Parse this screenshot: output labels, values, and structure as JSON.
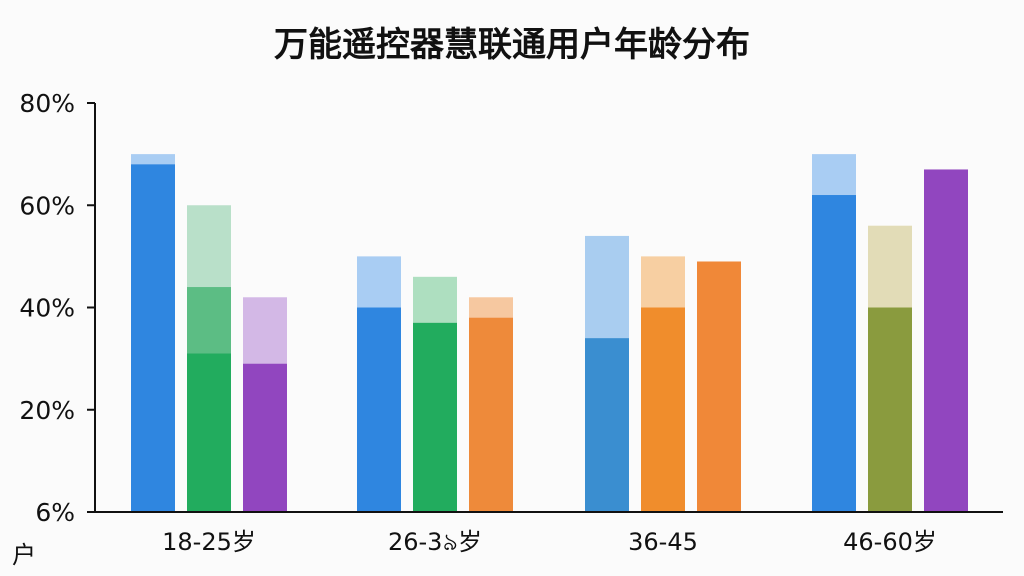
{
  "chart_data": {
    "type": "bar",
    "title": "万能遥控器慧联通用户年龄分布",
    "corner_label": "户",
    "y_tick_labels": [
      "6%",
      "20%",
      "40%",
      "60%",
      "80%"
    ],
    "ylim": [
      0,
      80
    ],
    "grid": false,
    "legend": "none",
    "categories": [
      "18-25岁",
      "26-3৯岁",
      "36-45",
      "46-60岁"
    ],
    "bar_groups": [
      [
        {
          "value": 68,
          "top": 70,
          "color": "#2f86e0",
          "top_color": "#a9cdf3"
        },
        {
          "value": 31,
          "mid": 44,
          "top": 60,
          "color": "#22ac5e",
          "mid_color": "#5cbd84",
          "top_color": "#b9e0c9"
        },
        {
          "value": 29,
          "top": 42,
          "color": "#9146bf",
          "top_color": "#d3b8e6"
        }
      ],
      [
        {
          "value": 40,
          "top": 50,
          "color": "#2f86e0",
          "top_color": "#a9cdf3"
        },
        {
          "value": 37,
          "top": 46,
          "color": "#22ac5e",
          "top_color": "#aedfc0"
        },
        {
          "value": 38,
          "top": 42,
          "color": "#ee8a3a",
          "top_color": "#f6c8a0"
        }
      ],
      [
        {
          "value": 34,
          "top": 54,
          "color": "#3a8ed0",
          "top_color": "#a9cdf0"
        },
        {
          "value": 40,
          "top": 50,
          "color": "#f08d2c",
          "top_color": "#f7cfa2"
        },
        {
          "value": 49,
          "top": 49,
          "color": "#f08838",
          "top_color": "#f08838"
        }
      ],
      [
        {
          "value": 62,
          "top": 70,
          "color": "#2f86e0",
          "top_color": "#a9cdf3"
        },
        {
          "value": 40,
          "top": 56,
          "color": "#8a9b3e",
          "top_color": "#e2dcb7"
        },
        {
          "value": 67,
          "top": 67,
          "color": "#9146bf",
          "top_color": "#9146bf"
        }
      ]
    ]
  }
}
